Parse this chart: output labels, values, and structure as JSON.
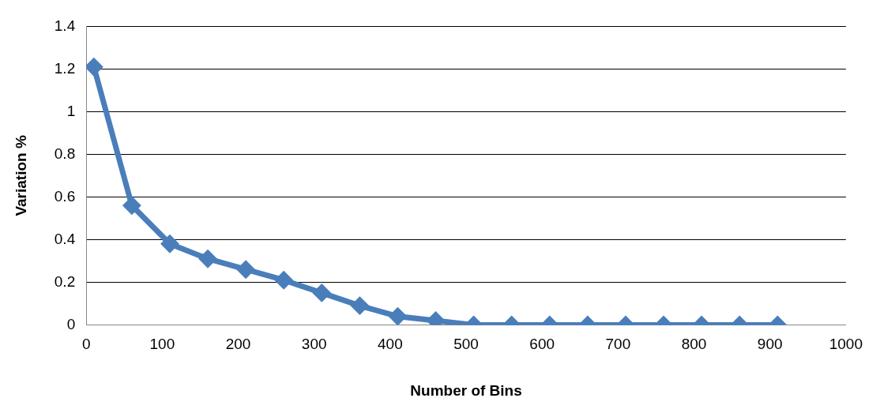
{
  "chart_data": {
    "type": "line",
    "xlabel": "Number of Bins",
    "ylabel": "Variation %",
    "x": [
      10,
      60,
      110,
      160,
      210,
      260,
      310,
      360,
      410,
      460,
      510,
      560,
      610,
      660,
      710,
      760,
      810,
      860,
      910
    ],
    "series": [
      {
        "color": "#4a7ebb",
        "values": [
          1.21,
          0.56,
          0.38,
          0.31,
          0.26,
          0.21,
          0.15,
          0.09,
          0.04,
          0.02,
          0,
          0,
          0,
          0,
          0,
          0,
          0,
          0,
          0
        ]
      }
    ],
    "xlim": [
      0,
      1000
    ],
    "xticks": [
      0,
      100,
      200,
      300,
      400,
      500,
      600,
      700,
      800,
      900,
      1000
    ],
    "ylim": [
      0,
      1.4
    ],
    "yticks": [
      0,
      0.2,
      0.4,
      0.6,
      0.8,
      1,
      1.2,
      1.4
    ],
    "grid": "y",
    "legend": false,
    "marker": "diamond",
    "line_style": "solid"
  }
}
